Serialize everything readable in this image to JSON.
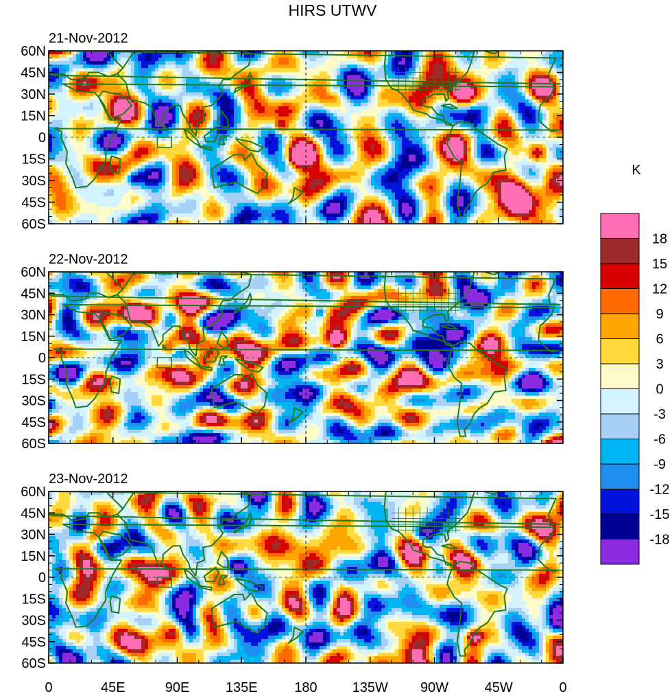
{
  "title": "HIRS UTWV",
  "panels": [
    {
      "date": "21-Nov-2012",
      "seed": 11
    },
    {
      "date": "22-Nov-2012",
      "seed": 37
    },
    {
      "date": "23-Nov-2012",
      "seed": 83
    }
  ],
  "lat_labels": [
    "60N",
    "45N",
    "30N",
    "15N",
    "0",
    "15S",
    "30S",
    "45S",
    "60S"
  ],
  "lon_labels": [
    "0",
    "45E",
    "90E",
    "135E",
    "180",
    "135W",
    "90W",
    "45W",
    "0"
  ],
  "colorbar": {
    "unit": "K",
    "labels": [
      "18",
      "15",
      "12",
      "9",
      "6",
      "3",
      "0",
      "-3",
      "-6",
      "-9",
      "-12",
      "-15",
      "-18"
    ],
    "colors_top_to_bottom": [
      "#ff6eb4",
      "#9f2a2a",
      "#d90000",
      "#ff6a00",
      "#ffa500",
      "#ffd93d",
      "#fffbc8",
      "#d2f3ff",
      "#a6d0f5",
      "#00b6f2",
      "#1e8ff0",
      "#0012dc",
      "#000096",
      "#8c2be2"
    ]
  },
  "colors": {
    "coastline": "#1f7a1f",
    "border": "#1f7a1f"
  }
}
